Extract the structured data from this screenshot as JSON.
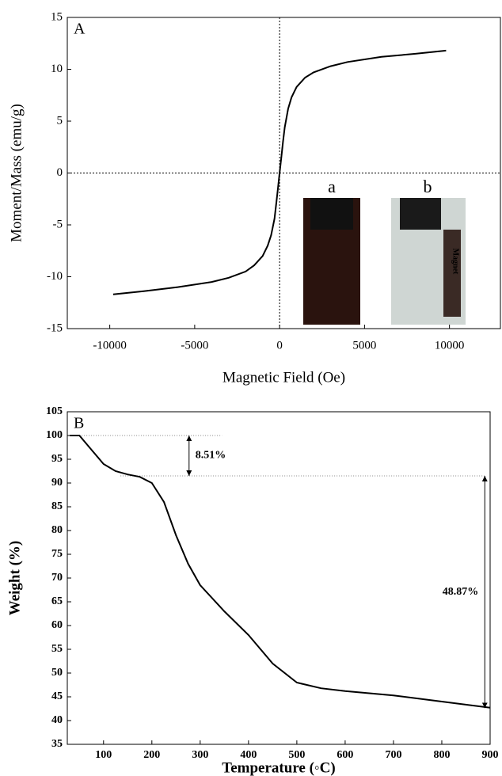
{
  "chart_data": [
    {
      "type": "line",
      "panel_label": "A",
      "x_label": "Magnetic Field (Oe)",
      "y_label": "Moment/Mass (emu/g)",
      "x": [
        -9800,
        -8000,
        -6000,
        -4000,
        -3000,
        -2000,
        -1500,
        -1000,
        -700,
        -500,
        -300,
        -200,
        -100,
        0,
        100,
        200,
        300,
        500,
        700,
        1000,
        1500,
        2000,
        3000,
        4000,
        6000,
        8000,
        9800
      ],
      "values": [
        -11.7,
        -11.4,
        -11.0,
        -10.5,
        -10.1,
        -9.5,
        -8.9,
        -8.0,
        -7.0,
        -6.0,
        -4.4,
        -3.0,
        -1.5,
        0,
        1.5,
        3.0,
        4.4,
        6.2,
        7.3,
        8.3,
        9.2,
        9.7,
        10.3,
        10.7,
        11.2,
        11.5,
        11.8
      ],
      "color": "#000000",
      "xlim": [
        -12500,
        13000
      ],
      "xticks": [
        -10000,
        -5000,
        0,
        5000,
        10000
      ],
      "ylim": [
        -15,
        15
      ],
      "yticks": [
        -15,
        -10,
        -5,
        0,
        5,
        10,
        15
      ],
      "zero_lines": true,
      "inset_labels": [
        "a",
        "b",
        "Magnet"
      ]
    },
    {
      "type": "line",
      "panel_label": "B",
      "x_label": "Temperature (◦C)",
      "y_label": "Weight (%)",
      "x": [
        30,
        50,
        75,
        100,
        125,
        150,
        175,
        200,
        225,
        250,
        275,
        300,
        350,
        400,
        450,
        500,
        550,
        600,
        700,
        800,
        900
      ],
      "values": [
        100,
        100,
        97,
        94,
        92.5,
        91.8,
        91.3,
        90,
        86,
        79,
        73,
        68.5,
        63,
        58,
        52,
        48,
        46.8,
        46.2,
        45.3,
        44,
        42.7
      ],
      "color": "#000000",
      "xlim": [
        25,
        900
      ],
      "xticks": [
        100,
        200,
        300,
        400,
        500,
        600,
        700,
        800,
        900
      ],
      "ylim": [
        35,
        105
      ],
      "yticks": [
        35,
        40,
        45,
        50,
        55,
        60,
        65,
        70,
        75,
        80,
        85,
        90,
        95,
        100,
        105
      ],
      "guides": [
        {
          "y": 100,
          "x1": 35,
          "x2": 345
        },
        {
          "y": 91.49,
          "x1": 135,
          "x2": 890
        }
      ],
      "annotations": [
        {
          "text": "8.51%",
          "x": 277,
          "y1": 100,
          "y2": 91.49
        },
        {
          "text": "48.87%",
          "x": 889,
          "y1": 91.49,
          "y2": 42.62
        }
      ]
    }
  ]
}
